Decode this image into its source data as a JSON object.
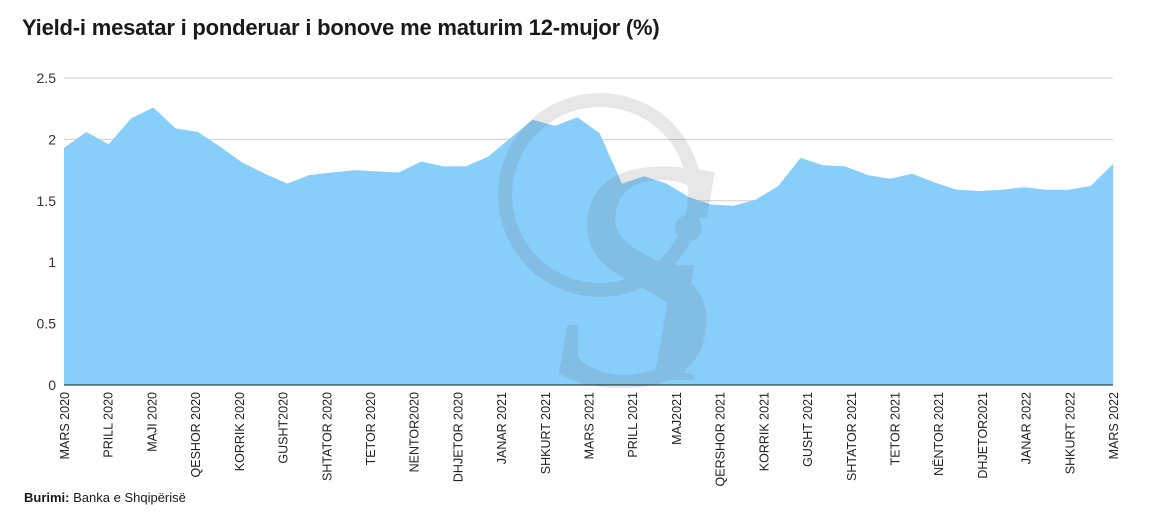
{
  "chart_data": {
    "type": "area",
    "title": "Yield-i mesatar i ponderuar i bonove me maturim 12-mujor (%)",
    "xlabel": "",
    "ylabel": "",
    "ylim": [
      0,
      2.5
    ],
    "yticks": [
      0,
      0.5,
      1,
      1.5,
      2,
      2.5
    ],
    "ytick_labels": [
      "0",
      "0.5",
      "1",
      "1.5",
      "2",
      "2.5"
    ],
    "grid": true,
    "fill_color": "#87cefa",
    "grid_color": "#d0d0d0",
    "x_labels": [
      "MARS 2020",
      "PRILL 2020",
      "MAJI 2020",
      "QESHOR 2020",
      "KORRIK 2020",
      "GUSHT2020",
      "SHTATOR 2020",
      "TETOR 2020",
      "NENTOR2020",
      "DHJETOR 2020",
      "JANAR 2021",
      "SHKURT 2021",
      "MARS 2021",
      "PRILL 2021",
      "MAJ2021",
      "QERSHOR 2021",
      "KORRIK 2021",
      "GUSHT 2021",
      "SHTATOR 2021",
      "TETOR 2021",
      "NËNTOR 2021",
      "DHJETOR2021",
      "JANAR 2022",
      "SHKURT 2022",
      "MARS 2022"
    ],
    "values": [
      1.93,
      2.06,
      1.96,
      2.17,
      2.26,
      2.09,
      2.06,
      1.94,
      1.81,
      1.72,
      1.64,
      1.71,
      1.73,
      1.75,
      1.74,
      1.73,
      1.82,
      1.78,
      1.78,
      1.86,
      2.01,
      2.16,
      2.11,
      2.18,
      2.05,
      1.64,
      1.7,
      1.64,
      1.53,
      1.47,
      1.46,
      1.51,
      1.62,
      1.85,
      1.79,
      1.78,
      1.71,
      1.68,
      1.72,
      1.65,
      1.59,
      1.58,
      1.59,
      1.61,
      1.59,
      1.59,
      1.62,
      1.8
    ]
  },
  "source": {
    "label": "Burimi:",
    "text": "Banka e Shqipërisë"
  },
  "watermark": {
    "name": "si-logo-watermark",
    "text": "Si"
  }
}
